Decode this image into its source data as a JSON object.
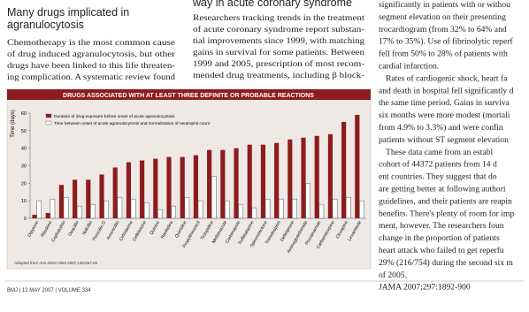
{
  "left": {
    "title_lines": [
      "Many drugs implicated in",
      "agranulocytosis"
    ],
    "body_lines": [
      "Chemotherapy is the most common cause",
      "of drug induced agranulocytosis, but other",
      "drugs have been linked to this life threaten-",
      "ing complication. A systematic review found"
    ]
  },
  "middle": {
    "heading": "way in acute coronary syndrome",
    "body_lines": [
      "Researchers tracking trends in the treatment",
      "of acute coronary syndrome report substan-",
      "tial improvements since 1999, with matching",
      "gains in survival for some patients. Between",
      "1999 and 2005, prescription of most recom-",
      "mended drug treatments, including β block-"
    ]
  },
  "right": {
    "body_lines": [
      "significantly in patients with or withou",
      "segment elevation on their presenting",
      "trocardiogram (from 32% to 64% and",
      "17% to 35%). Use of fibrinolytic reperf",
      "fell from 50% to 28% of patients with",
      "cardial infarction.",
      "Rates of cardiogenic shock, heart fa",
      "and death in hospital fell significantly d",
      "the same time period. Gains in surviva",
      "six months were more modest (mortali",
      "from 4.9% to 3.3%) and were confin",
      "patients without ST segment elevation",
      "These data came from an establ",
      "cohort of 44372 patients from 14 d",
      "ent countries. They suggest that do",
      "are getting better at following authori",
      "guidelines, and their patients are reapin",
      "benefits. There's plenty of room for imp",
      "ment, however. The researchers foun",
      "change in the proportion of patients",
      "heart attack who failed to get reperfu",
      "29% (216/754) during the second six m",
      "of 2005."
    ],
    "reference": "JAMA 2007;297:1892-900"
  },
  "footer": "BMJ | 12 MAY 2007 | VOLUME 334",
  "chart_data": {
    "type": "bar",
    "title": "DRUGS ASSOCIATED WITH AT LEAST THREE DEFINITE OR PROBABLE REACTIONS",
    "ylabel": "Time (days)",
    "categories": [
      "Dipyrone",
      "Ritodrine",
      "Cephalothin",
      "Oxacillin",
      "Nafcillin",
      "Penicillin G",
      "Amoxicillin",
      "Cefotaxime",
      "Ceftriaxone",
      "Quinine",
      "Ranitidine",
      "Quinidine",
      "Propylthiouracil",
      "Ticlopidine",
      "Methimazole",
      "Carbimazole",
      "Sulfasalazine",
      "Spironolactone",
      "Trimethoprim",
      "Deferiprone",
      "Aminoglutethimide",
      "Procainamide",
      "Carbamazepine",
      "Clozapine",
      "Levamisole"
    ],
    "series": [
      {
        "name": "Duration of drug exposure before onset of acute agranulocytosis",
        "color": "#8e1c1e",
        "values": [
          2,
          3,
          19,
          22,
          22,
          25,
          29,
          32,
          33,
          34,
          35,
          35,
          36,
          39,
          39,
          40,
          42,
          42,
          43,
          45,
          46,
          47,
          48,
          55,
          59
        ]
      },
      {
        "name": "Time between onset of acute agranulocytosis and normalisation of neutrophil count",
        "color": "#ffffff",
        "values": [
          10,
          11,
          12,
          7,
          8,
          10,
          12,
          11,
          9,
          5,
          7,
          12,
          10,
          24,
          10,
          8,
          6,
          11,
          11,
          11,
          20,
          8,
          11,
          12,
          10
        ]
      }
    ],
    "ylim": [
      0,
      60
    ],
    "yticks": [
      0,
      10,
      20,
      30,
      40,
      50,
      60
    ],
    "source": "Adapted from Ann Intern Med 2007;146:657-65"
  }
}
